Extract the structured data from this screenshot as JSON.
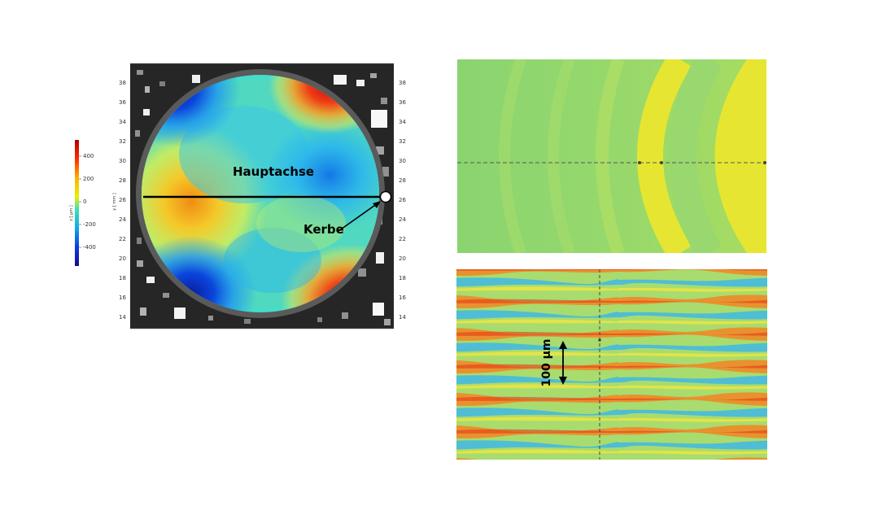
{
  "colorbar": {
    "label": "z [ µm ]",
    "ticks": [
      "400",
      "200",
      "0",
      "-200",
      "-400"
    ]
  },
  "wafer_map": {
    "axis_label": "y [ mm ]",
    "y_ticks": [
      "38",
      "36",
      "34",
      "32",
      "30",
      "28",
      "26",
      "24",
      "22",
      "20",
      "18",
      "16",
      "14"
    ],
    "labels": {
      "main_axis": "Hauptachse",
      "notch": "Kerbe"
    }
  },
  "detail_bottom": {
    "scale_label": "100 µm"
  },
  "colors": {
    "blue": "#0a32c8",
    "cyan": "#20c8e6",
    "yellow": "#f0e628",
    "orange": "#f07814",
    "red": "#c81e14",
    "green_bg": "#8ed26e"
  }
}
